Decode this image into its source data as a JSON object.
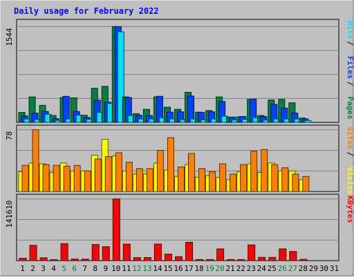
{
  "chart_data": [
    {
      "type": "bar",
      "title": "Daily usage for February 2022",
      "categories": [
        "1",
        "2",
        "3",
        "4",
        "5",
        "6",
        "7",
        "8",
        "9",
        "10",
        "11",
        "12",
        "13",
        "14",
        "15",
        "16",
        "17",
        "18",
        "19",
        "20",
        "21",
        "22",
        "23",
        "24",
        "25",
        "26",
        "27",
        "28",
        "29",
        "30",
        "31"
      ],
      "weekend_days": [
        "5",
        "6",
        "12",
        "13",
        "19",
        "20",
        "26",
        "27"
      ],
      "y_axis_max_label": "1544",
      "ylim": [
        0,
        1544
      ],
      "grid": true,
      "series": [
        {
          "name": "Pages",
          "color": "#008040",
          "values": [
            160,
            410,
            275,
            110,
            400,
            395,
            115,
            550,
            580,
            1544,
            410,
            140,
            210,
            410,
            245,
            210,
            485,
            165,
            190,
            410,
            85,
            90,
            370,
            110,
            360,
            370,
            315,
            70,
            0,
            0,
            0
          ]
        },
        {
          "name": "Files",
          "color": "#0040FF",
          "values": [
            105,
            150,
            175,
            60,
            420,
            175,
            80,
            355,
            325,
            1544,
            400,
            115,
            110,
            420,
            165,
            170,
            425,
            160,
            170,
            335,
            85,
            95,
            375,
            95,
            290,
            230,
            150,
            55,
            0,
            0,
            0
          ]
        },
        {
          "name": "Hits",
          "color": "#00E0FF",
          "values": [
            55,
            45,
            130,
            30,
            55,
            115,
            50,
            160,
            305,
            1460,
            110,
            55,
            55,
            75,
            55,
            45,
            55,
            40,
            55,
            100,
            40,
            50,
            75,
            35,
            55,
            55,
            55,
            30,
            0,
            0,
            0
          ]
        }
      ]
    },
    {
      "type": "bar",
      "categories": [
        "1",
        "2",
        "3",
        "4",
        "5",
        "6",
        "7",
        "8",
        "9",
        "10",
        "11",
        "12",
        "13",
        "14",
        "15",
        "16",
        "17",
        "18",
        "19",
        "20",
        "21",
        "22",
        "23",
        "24",
        "25",
        "26",
        "27",
        "28",
        "29",
        "30",
        "31"
      ],
      "y_axis_max_label": "78",
      "ylim": [
        0,
        78
      ],
      "grid": true,
      "series": [
        {
          "name": "Visits",
          "color": "#FFFF00",
          "values": [
            25,
            36,
            35,
            24,
            36,
            26,
            26,
            46,
            66,
            45,
            26,
            22,
            22,
            36,
            27,
            19,
            34,
            18,
            20,
            18,
            15,
            25,
            35,
            24,
            36,
            26,
            26,
            15,
            0,
            0,
            0
          ]
        },
        {
          "name": "Sites",
          "color": "#FF8000",
          "values": [
            33,
            78,
            34,
            33,
            32,
            33,
            26,
            41,
            44,
            49,
            37,
            29,
            29,
            52,
            68,
            31,
            48,
            29,
            25,
            35,
            22,
            34,
            51,
            53,
            34,
            30,
            22,
            19,
            0,
            0,
            0
          ]
        }
      ]
    },
    {
      "type": "bar",
      "categories": [
        "1",
        "2",
        "3",
        "4",
        "5",
        "6",
        "7",
        "8",
        "9",
        "10",
        "11",
        "12",
        "13",
        "14",
        "15",
        "16",
        "17",
        "18",
        "19",
        "20",
        "21",
        "22",
        "23",
        "24",
        "25",
        "26",
        "27",
        "28",
        "29",
        "30",
        "31"
      ],
      "y_axis_max_label": "141610",
      "ylim": [
        0,
        141610
      ],
      "grid": true,
      "series": [
        {
          "name": "KBytes",
          "color": "#FF0000",
          "values": [
            5500,
            35000,
            6500,
            2200,
            39000,
            3500,
            3500,
            37000,
            32000,
            141610,
            38000,
            7000,
            7000,
            38000,
            15000,
            9000,
            42000,
            2500,
            2500,
            27000,
            2500,
            2500,
            36000,
            7500,
            7500,
            27000,
            21000,
            3000,
            0,
            0,
            0
          ]
        }
      ]
    }
  ],
  "colors": {
    "background": "#C0C0C0",
    "plot_bg": "#C0C0C0",
    "title": "#0000FF",
    "weekday_label": "#000000",
    "weekend_label": "#008040"
  }
}
